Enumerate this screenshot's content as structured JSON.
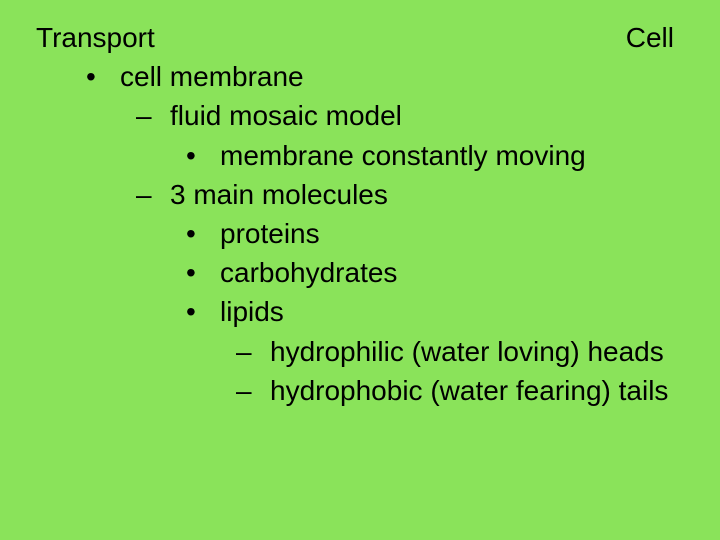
{
  "background_color": "#8ae35a",
  "text_color": "#000000",
  "font_family": "Arial",
  "font_size_pt": 28,
  "header": {
    "right": "Cell",
    "left": "Transport"
  },
  "outline": {
    "l1_1": "cell membrane",
    "l2_1": "fluid mosaic model",
    "l3_1": "membrane constantly moving",
    "l2_2": "3 main molecules",
    "l3_2": "proteins",
    "l3_3": "carbohydrates",
    "l3_4": "lipids",
    "l4_1": "hydrophilic (water loving) heads",
    "l4_2": "hydrophobic (water fearing) tails"
  }
}
